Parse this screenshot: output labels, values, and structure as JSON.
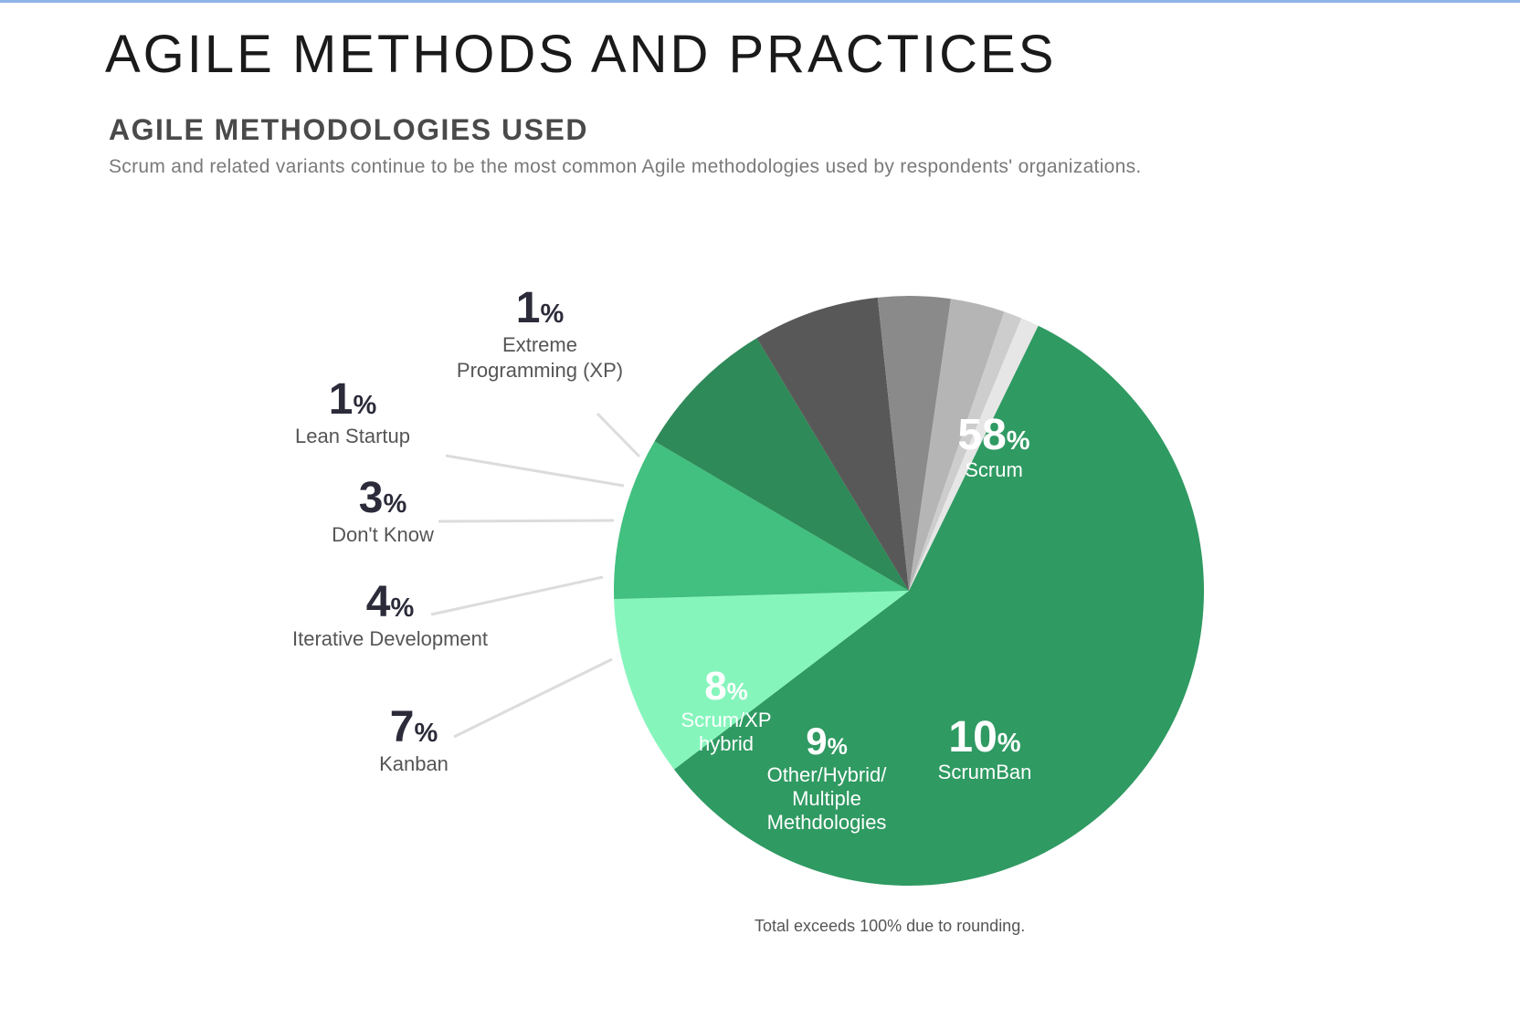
{
  "page": {
    "title": "AGILE METHODS AND PRACTICES",
    "section_title": "AGILE METHODOLOGIES USED",
    "section_subtitle": "Scrum and related variants continue to be the most common Agile methodologies used by respondents' organizations.",
    "footnote": "Total exceeds 100% due to rounding."
  },
  "chart_data": {
    "type": "pie",
    "title": "AGILE METHODOLOGIES USED",
    "slices": [
      {
        "label": "Scrum",
        "value": 58,
        "pct": "58%",
        "color": "#2f9a62",
        "text_color": "#ffffff",
        "inside": true
      },
      {
        "label": "ScrumBan",
        "value": 10,
        "pct": "10%",
        "color": "#86f5bc",
        "text_color": "#ffffff",
        "inside": true
      },
      {
        "label": "Other/Hybrid/ Multiple Methdologies",
        "lines": [
          "Other/Hybrid/",
          "Multiple",
          "Methdologies"
        ],
        "value": 9,
        "pct": "9%",
        "color": "#41c07f",
        "text_color": "#ffffff",
        "inside": true
      },
      {
        "label": "Scrum/XP hybrid",
        "lines": [
          "Scrum/XP",
          "hybrid"
        ],
        "value": 8,
        "pct": "8%",
        "color": "#2e8a58",
        "text_color": "#ffffff",
        "inside": true
      },
      {
        "label": "Kanban",
        "value": 7,
        "pct": "7%",
        "color": "#585858",
        "text_color": "#2b2b3a",
        "inside": false
      },
      {
        "label": "Iterative Development",
        "value": 4,
        "pct": "4%",
        "color": "#8a8a8a",
        "text_color": "#2b2b3a",
        "inside": false
      },
      {
        "label": "Don't Know",
        "value": 3,
        "pct": "3%",
        "color": "#b5b5b5",
        "text_color": "#2b2b3a",
        "inside": false
      },
      {
        "label": "Lean Startup",
        "value": 1,
        "pct": "1%",
        "color": "#cdcdcd",
        "text_color": "#2b2b3a",
        "inside": false
      },
      {
        "label": "Extreme Programming (XP)",
        "lines": [
          "Extreme",
          "Programming (XP)"
        ],
        "value": 1,
        "pct": "1%",
        "color": "#e6e6e6",
        "text_color": "#2b2b3a",
        "inside": false
      }
    ]
  }
}
